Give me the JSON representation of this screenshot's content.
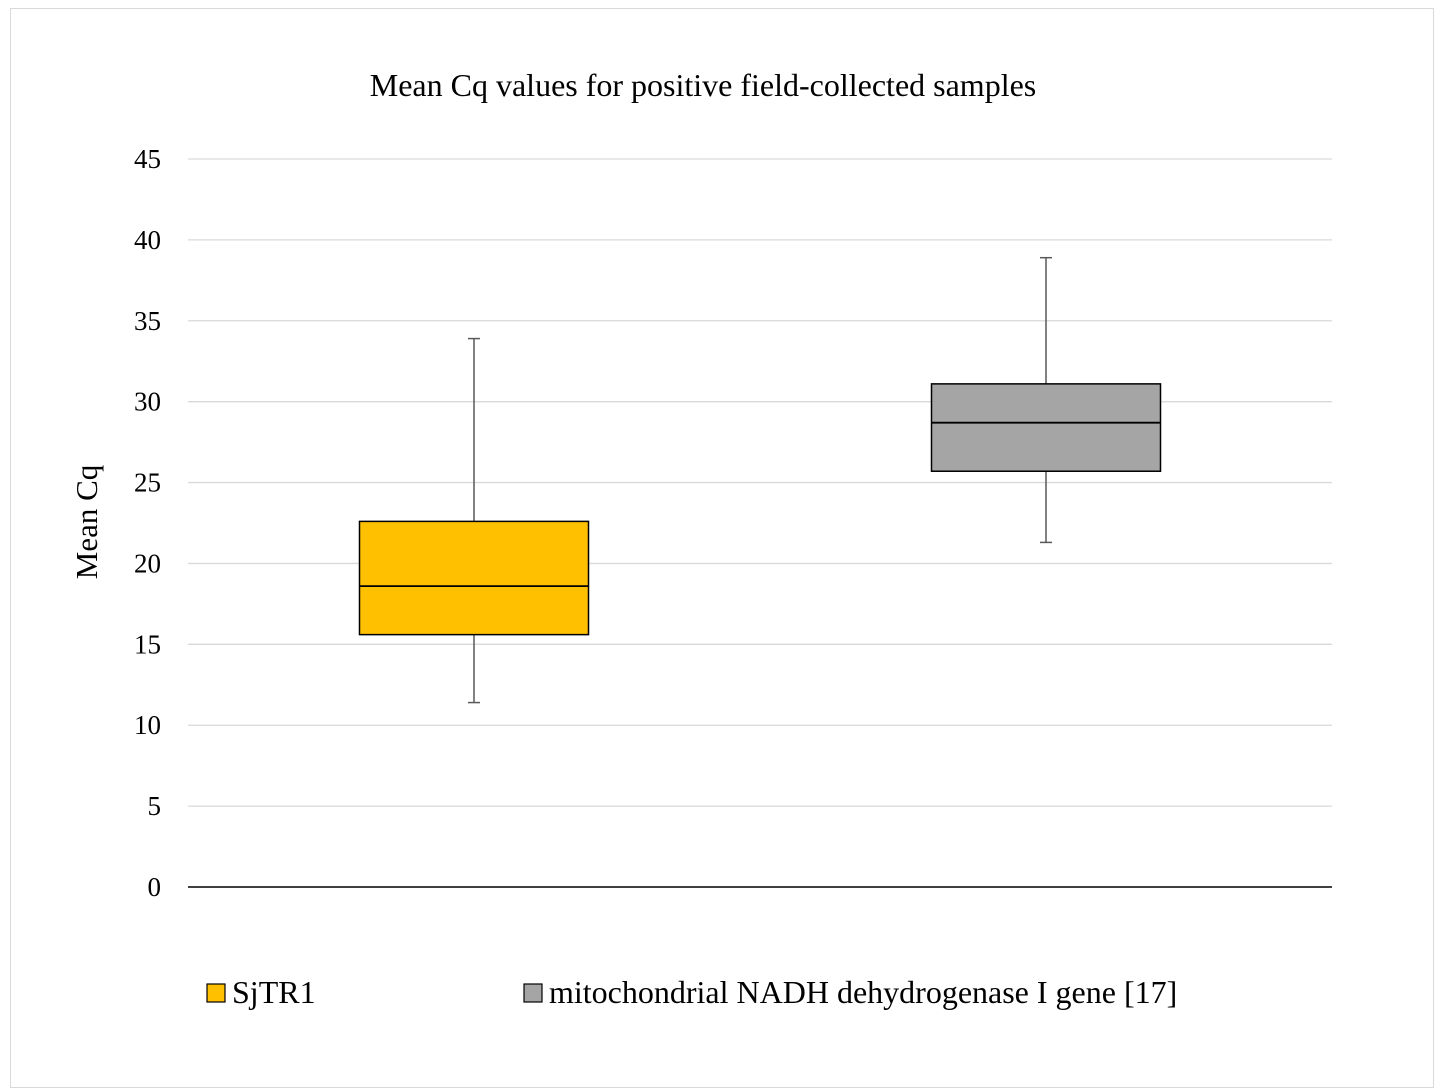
{
  "chart_data": {
    "type": "box",
    "title": "Mean Cq values for positive field-collected samples",
    "xlabel": "",
    "ylabel": "Mean Cq",
    "ylim": [
      0,
      45
    ],
    "yticks": [
      0,
      5,
      10,
      15,
      20,
      25,
      30,
      35,
      40,
      45
    ],
    "grid": true,
    "legend_position": "bottom",
    "series": [
      {
        "name": "SjTR1",
        "color": "#ffc000",
        "min": 11.4,
        "q1": 15.6,
        "median": 18.6,
        "q3": 22.6,
        "max": 33.9
      },
      {
        "name": "mitochondrial NADH dehydrogenase I gene [17]",
        "color": "#a5a5a5",
        "min": 21.3,
        "q1": 25.7,
        "median": 28.7,
        "q3": 31.1,
        "max": 38.9
      }
    ]
  }
}
